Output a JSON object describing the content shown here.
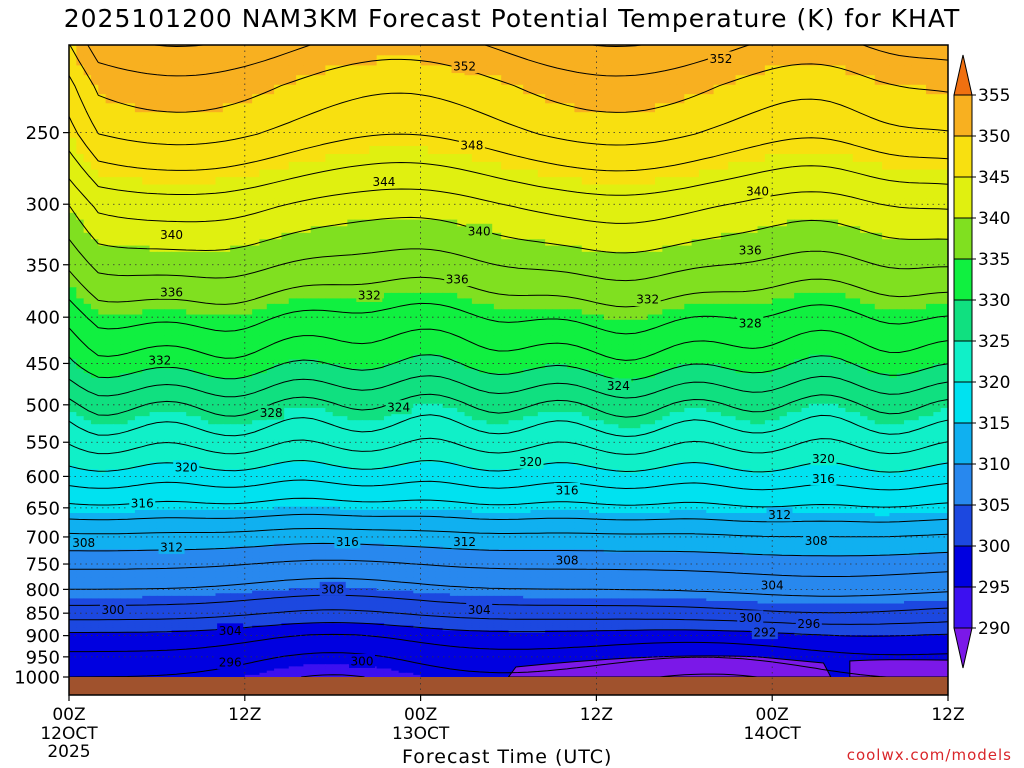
{
  "chart_data": {
    "type": "heatmap",
    "title": "2025101200 NAM3KM Forecast Potential Temperature (K) for KHAT",
    "xlabel": "Forecast Time (UTC)",
    "ylabel": "",
    "xlim": [
      0,
      60
    ],
    "ylim": [
      1000,
      200
    ],
    "y_ticks": [
      250,
      300,
      350,
      400,
      450,
      500,
      550,
      600,
      650,
      700,
      750,
      800,
      850,
      900,
      950,
      1000
    ],
    "x_ticks": [
      {
        "hour": 0,
        "label": "00Z",
        "sub": "12OCT",
        "sub2": "2025"
      },
      {
        "hour": 12,
        "label": "12Z",
        "sub": "",
        "sub2": ""
      },
      {
        "hour": 24,
        "label": "00Z",
        "sub": "13OCT",
        "sub2": ""
      },
      {
        "hour": 36,
        "label": "12Z",
        "sub": "",
        "sub2": ""
      },
      {
        "hour": 48,
        "label": "00Z",
        "sub": "14OCT",
        "sub2": ""
      },
      {
        "hour": 60,
        "label": "12Z",
        "sub": "",
        "sub2": ""
      }
    ],
    "colorbar": {
      "levels": [
        290,
        295,
        300,
        305,
        310,
        315,
        320,
        325,
        330,
        335,
        340,
        345,
        350,
        355
      ],
      "colors": [
        "#7b18e8",
        "#3c10f0",
        "#0000e0",
        "#1c48e0",
        "#2888ee",
        "#10b0f0",
        "#00e2f0",
        "#10f0c8",
        "#10e080",
        "#10f040",
        "#80e020",
        "#e0f010",
        "#f8e010",
        "#f8b020",
        "#f07010"
      ]
    },
    "contour_labels": [
      {
        "text": "352",
        "hour": 27.0,
        "p": 211
      },
      {
        "text": "352",
        "hour": 44.5,
        "p": 207
      },
      {
        "text": "348",
        "hour": 27.5,
        "p": 258
      },
      {
        "text": "344",
        "hour": 21.5,
        "p": 283
      },
      {
        "text": "340",
        "hour": 7.0,
        "p": 324
      },
      {
        "text": "340",
        "hour": 28.0,
        "p": 321
      },
      {
        "text": "340",
        "hour": 47.0,
        "p": 290
      },
      {
        "text": "336",
        "hour": 7.0,
        "p": 375
      },
      {
        "text": "336",
        "hour": 26.5,
        "p": 363
      },
      {
        "text": "336",
        "hour": 46.5,
        "p": 337
      },
      {
        "text": "332",
        "hour": 20.5,
        "p": 378
      },
      {
        "text": "332",
        "hour": 39.5,
        "p": 382
      },
      {
        "text": "332",
        "hour": 6.2,
        "p": 446
      },
      {
        "text": "328",
        "hour": 46.5,
        "p": 406
      },
      {
        "text": "328",
        "hour": 13.8,
        "p": 510
      },
      {
        "text": "324",
        "hour": 22.5,
        "p": 503
      },
      {
        "text": "324",
        "hour": 37.5,
        "p": 476
      },
      {
        "text": "320",
        "hour": 8.0,
        "p": 586
      },
      {
        "text": "320",
        "hour": 31.5,
        "p": 578
      },
      {
        "text": "320",
        "hour": 51.5,
        "p": 573
      },
      {
        "text": "316",
        "hour": 51.5,
        "p": 603
      },
      {
        "text": "316",
        "hour": 34.0,
        "p": 621
      },
      {
        "text": "316",
        "hour": 5.0,
        "p": 642
      },
      {
        "text": "316",
        "hour": 19.0,
        "p": 708
      },
      {
        "text": "312",
        "hour": 48.5,
        "p": 661
      },
      {
        "text": "312",
        "hour": 27.0,
        "p": 708
      },
      {
        "text": "312",
        "hour": 7.0,
        "p": 718
      },
      {
        "text": "308",
        "hour": 1.0,
        "p": 710
      },
      {
        "text": "308",
        "hour": 51.0,
        "p": 706
      },
      {
        "text": "308",
        "hour": 34.0,
        "p": 742
      },
      {
        "text": "308",
        "hour": 18.0,
        "p": 799
      },
      {
        "text": "304",
        "hour": 48.0,
        "p": 791
      },
      {
        "text": "304",
        "hour": 28.0,
        "p": 842
      },
      {
        "text": "304",
        "hour": 11.0,
        "p": 888
      },
      {
        "text": "300",
        "hour": 3.0,
        "p": 842
      },
      {
        "text": "300",
        "hour": 46.5,
        "p": 859
      },
      {
        "text": "300",
        "hour": 20.0,
        "p": 960
      },
      {
        "text": "296",
        "hour": 50.5,
        "p": 873
      },
      {
        "text": "296",
        "hour": 11.0,
        "p": 963
      },
      {
        "text": "292",
        "hour": 47.5,
        "p": 892
      }
    ]
  },
  "credit": "coolwx.com/models"
}
